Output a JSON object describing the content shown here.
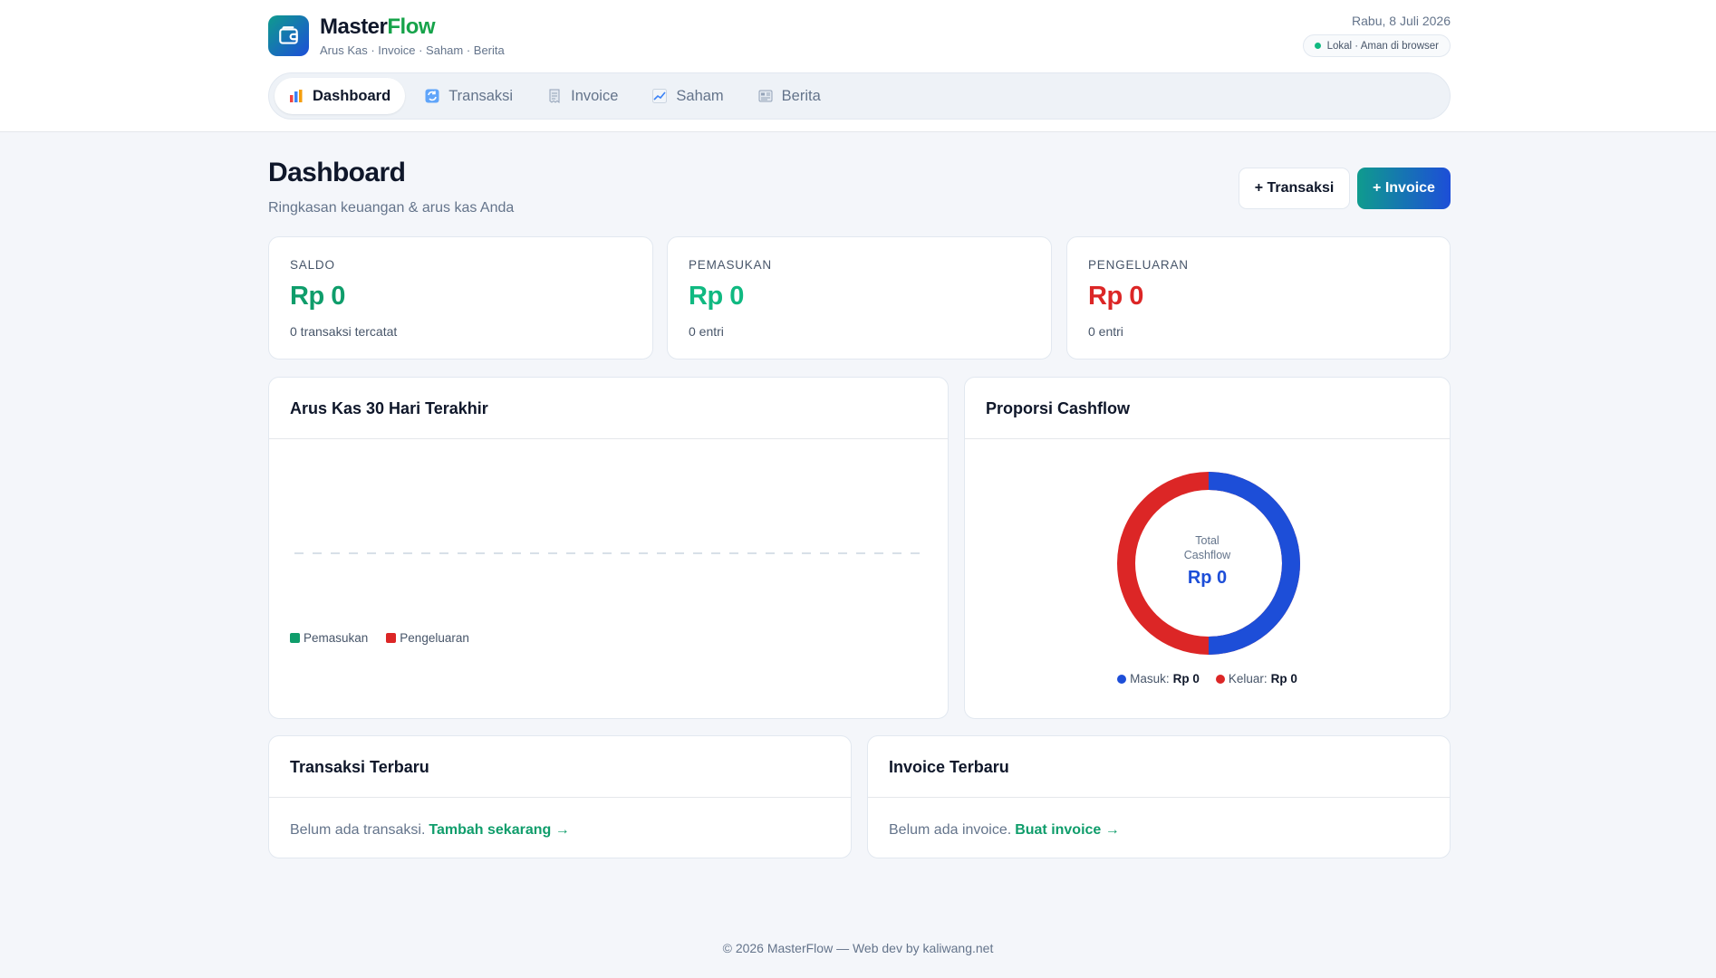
{
  "app": {
    "name_main": "Master",
    "name_accent": "Flow",
    "subtitle": "Arus Kas · Invoice · Saham · Berita",
    "date": "Rabu, 8 Juli 2026",
    "status": "Lokal · Aman di browser"
  },
  "nav": {
    "tabs": [
      {
        "label": "Dashboard",
        "icon": "bar-chart-icon",
        "active": true
      },
      {
        "label": "Transaksi",
        "icon": "refresh-icon",
        "active": false
      },
      {
        "label": "Invoice",
        "icon": "receipt-icon",
        "active": false
      },
      {
        "label": "Saham",
        "icon": "chart-up-icon",
        "active": false
      },
      {
        "label": "Berita",
        "icon": "newspaper-icon",
        "active": false
      }
    ]
  },
  "page": {
    "title": "Dashboard",
    "subtitle": "Ringkasan keuangan & arus kas Anda",
    "btn_transaksi": "+ Transaksi",
    "btn_invoice": "+ Invoice"
  },
  "stats": [
    {
      "label": "SALDO",
      "value": "Rp 0",
      "note": "0 transaksi tercatat",
      "color": "#0f9d6b"
    },
    {
      "label": "PEMASUKAN",
      "value": "Rp 0",
      "note": "0 entri",
      "color": "#10b981"
    },
    {
      "label": "PENGELUARAN",
      "value": "Rp 0",
      "note": "0 entri",
      "color": "#dc2626"
    }
  ],
  "cashflow_chart": {
    "title": "Arus Kas 30 Hari Terakhir",
    "legend": [
      {
        "name": "Pemasukan",
        "color": "#0f9d6b"
      },
      {
        "name": "Pengeluaran",
        "color": "#dc2626"
      }
    ]
  },
  "proportion": {
    "title": "Proporsi Cashflow",
    "center_label_1": "Total",
    "center_label_2": "Cashflow",
    "center_value": "Rp 0",
    "masuk_label": "Masuk:",
    "masuk_value": "Rp 0",
    "keluar_label": "Keluar:",
    "keluar_value": "Rp 0",
    "masuk_color": "#1d4ed8",
    "keluar_color": "#dc2626"
  },
  "recent_transactions": {
    "title": "Transaksi Terbaru",
    "empty_text": "Belum ada transaksi.",
    "empty_link": "Tambah sekarang →"
  },
  "recent_invoices": {
    "title": "Invoice Terbaru",
    "empty_text": "Belum ada invoice.",
    "empty_link": "Buat invoice →"
  },
  "footer": "© 2026 MasterFlow — Web dev by kaliwang.net"
}
